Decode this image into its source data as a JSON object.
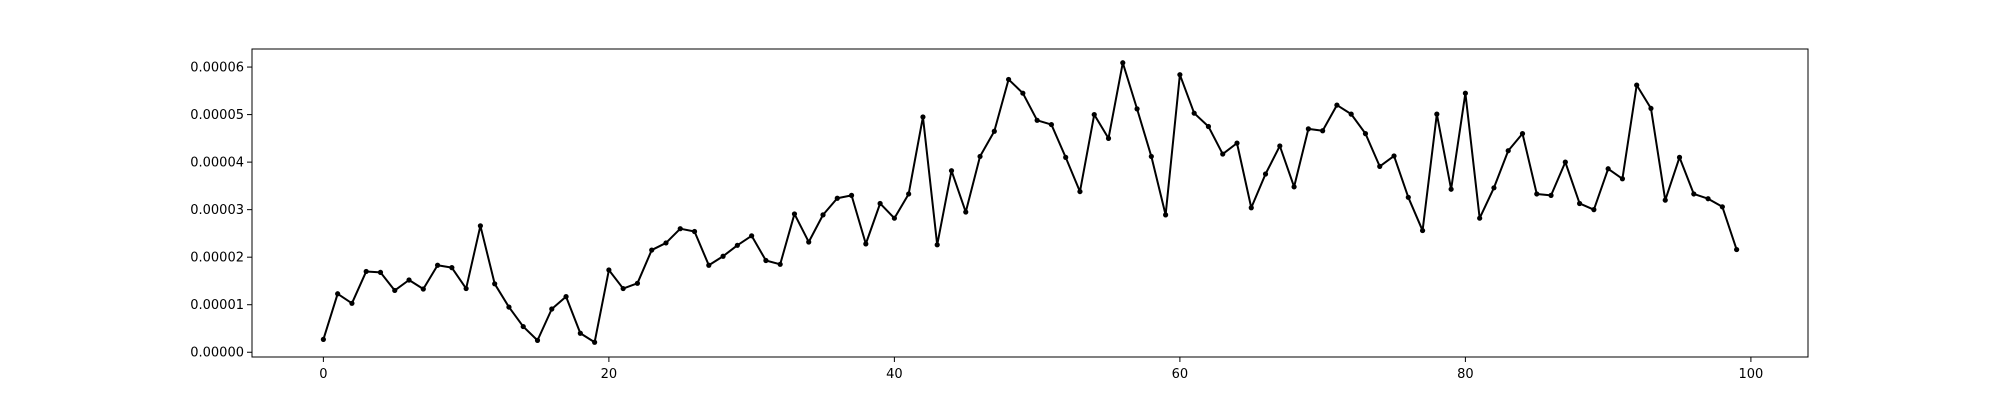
{
  "chart_data": {
    "type": "line",
    "title": "",
    "xlabel": "",
    "ylabel": "",
    "xlim": [
      -5,
      104
    ],
    "ylim": [
      -1e-06,
      6.38e-05
    ],
    "grid": false,
    "legend": "none",
    "line_color": "#000000",
    "marker": "dot",
    "x_ticks": [
      0,
      20,
      40,
      60,
      80,
      100
    ],
    "x_tick_labels": [
      "0",
      "20",
      "40",
      "60",
      "80",
      "100"
    ],
    "y_ticks": [
      0,
      1e-05,
      2e-05,
      3e-05,
      4e-05,
      5e-05,
      6e-05
    ],
    "y_tick_labels": [
      "0.00000",
      "0.00001",
      "0.00002",
      "0.00003",
      "0.00004",
      "0.00005",
      "0.00006"
    ],
    "series": [
      {
        "values": [
          2.7e-06,
          1.23e-05,
          1.03e-05,
          1.7e-05,
          1.68e-05,
          1.3e-05,
          1.52e-05,
          1.33e-05,
          1.83e-05,
          1.78e-05,
          1.34e-05,
          2.66e-05,
          1.44e-05,
          9.5e-06,
          5.4e-06,
          2.5e-06,
          9.1e-06,
          1.17e-05,
          4e-06,
          2.1e-06,
          1.73e-05,
          1.34e-05,
          1.45e-05,
          2.15e-05,
          2.3e-05,
          2.6e-05,
          2.54e-05,
          1.83e-05,
          2.02e-05,
          2.25e-05,
          2.45e-05,
          1.93e-05,
          1.85e-05,
          2.91e-05,
          2.32e-05,
          2.89e-05,
          3.24e-05,
          3.3e-05,
          2.28e-05,
          3.13e-05,
          2.82e-05,
          3.33e-05,
          4.95e-05,
          2.26e-05,
          3.82e-05,
          2.95e-05,
          4.12e-05,
          4.65e-05,
          5.74e-05,
          5.45e-05,
          4.88e-05,
          4.79e-05,
          4.1e-05,
          3.38e-05,
          5e-05,
          4.5e-05,
          6.09e-05,
          5.12e-05,
          4.12e-05,
          2.89e-05,
          5.84e-05,
          5.03e-05,
          4.75e-05,
          4.17e-05,
          4.4e-05,
          3.04e-05,
          3.75e-05,
          4.34e-05,
          3.48e-05,
          4.7e-05,
          4.66e-05,
          5.2e-05,
          5.01e-05,
          4.6e-05,
          3.91e-05,
          4.13e-05,
          3.26e-05,
          2.56e-05,
          5.01e-05,
          3.43e-05,
          5.45e-05,
          2.82e-05,
          3.46e-05,
          4.24e-05,
          4.6e-05,
          3.33e-05,
          3.3e-05,
          4e-05,
          3.13e-05,
          3e-05,
          3.86e-05,
          3.65e-05,
          5.62e-05,
          5.13e-05,
          3.2e-05,
          4.1e-05,
          3.33e-05,
          3.23e-05,
          3.06e-05,
          2.16e-05
        ]
      }
    ]
  }
}
